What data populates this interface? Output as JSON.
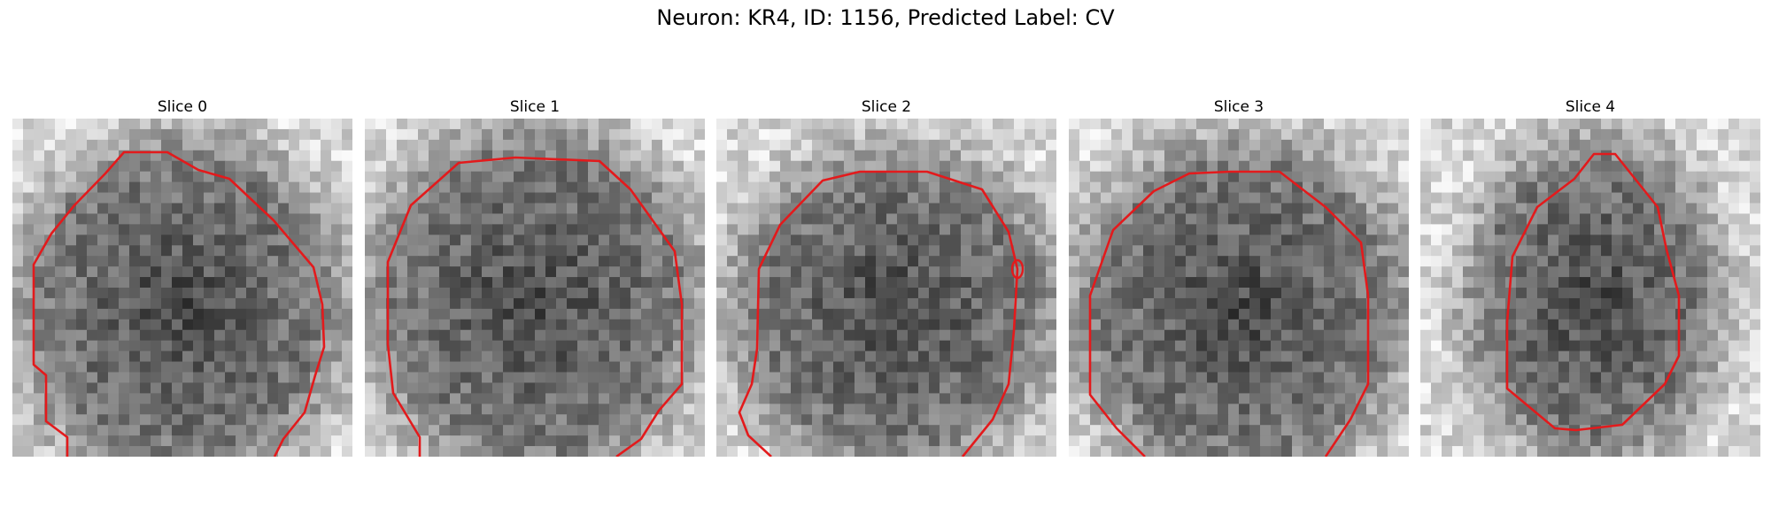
{
  "figure": {
    "title": "Neuron: KR4, ID: 1156, Predicted Label: CV"
  },
  "panels": [
    {
      "title": "Slice 0"
    },
    {
      "title": "Slice 1"
    },
    {
      "title": "Slice 2"
    },
    {
      "title": "Slice 3"
    },
    {
      "title": "Slice 4"
    }
  ],
  "colors": {
    "contour": "#e31a1c",
    "background": "#ffffff"
  }
}
